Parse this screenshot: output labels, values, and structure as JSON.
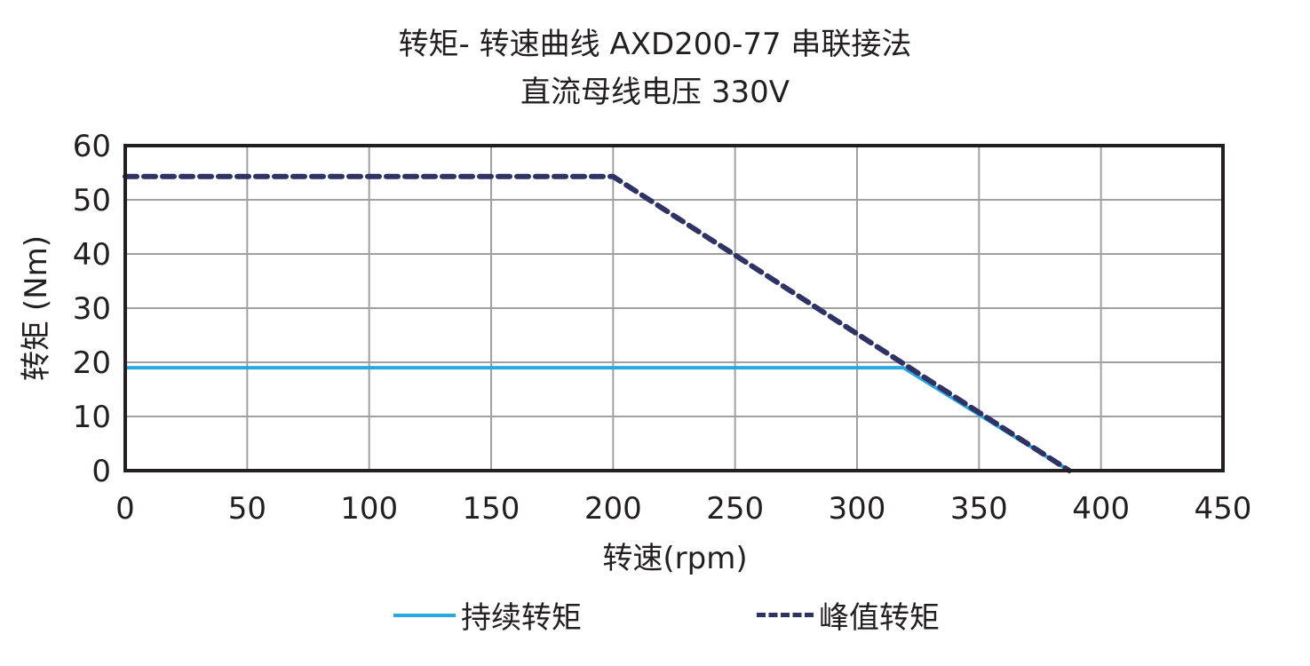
{
  "chart_data": {
    "type": "line",
    "title": "转矩- 转速曲线 AXD200-77 串联接法",
    "subtitle": "直流母线电压 330V",
    "xlabel": "转速(rpm)",
    "ylabel": "转矩 (Nm)",
    "xlim": [
      0,
      450
    ],
    "ylim": [
      0,
      60
    ],
    "xticks": [
      0,
      50,
      100,
      150,
      200,
      250,
      300,
      350,
      400,
      450
    ],
    "yticks": [
      0,
      10,
      20,
      30,
      40,
      50,
      60
    ],
    "grid": true,
    "legend_position": "bottom",
    "series": [
      {
        "name": "持续转矩",
        "style": "solid",
        "color": "#29a8e0",
        "x": [
          0,
          319,
          387
        ],
        "y": [
          19,
          19,
          0
        ]
      },
      {
        "name": "峰值转矩",
        "style": "dashed",
        "color": "#2e3264",
        "x": [
          0,
          200,
          387
        ],
        "y": [
          54.3,
          54.3,
          0
        ]
      }
    ]
  },
  "legend": {
    "continuous": "持续转矩",
    "peak": "峰值转矩"
  }
}
